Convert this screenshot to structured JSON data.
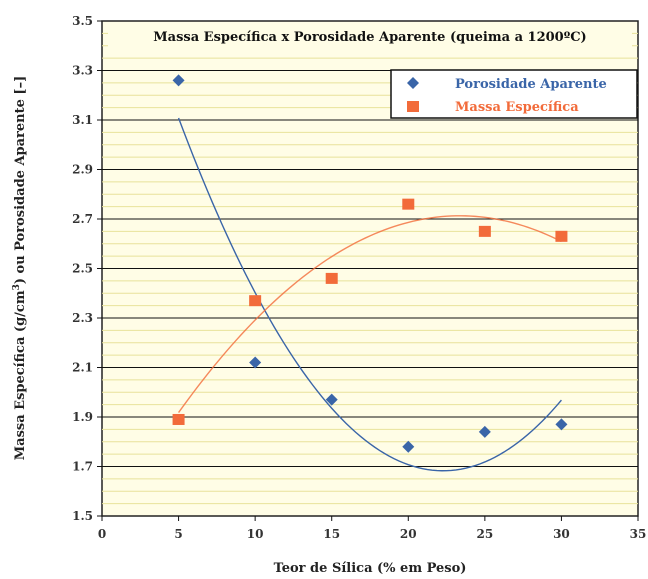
{
  "chart_data": {
    "type": "scatter",
    "title": "Massa Específica x Porosidade Aparente (queima a 1200ºC)",
    "xlabel": "Teor de Sílica (% em Peso)",
    "ylabel_main": "Massa Específica (g/cm",
    "ylabel_sup": "3",
    "ylabel_tail": ") ou Porosidade Aparente [–]",
    "xlim": [
      0,
      35
    ],
    "ylim": [
      1.5,
      3.5
    ],
    "x_ticks": [
      "0",
      "5",
      "10",
      "15",
      "20",
      "25",
      "30",
      "35"
    ],
    "y_ticks": [
      "1.5",
      "1.7",
      "1.9",
      "2.1",
      "2.3",
      "2.5",
      "2.7",
      "2.9",
      "3.1",
      "3.3",
      "3.5"
    ],
    "grid": true,
    "legend_position": "top-right",
    "series": [
      {
        "name": "Porosidade Aparente",
        "marker": "diamond",
        "color": "#3A65A8",
        "x": [
          5,
          10,
          15,
          20,
          25,
          30
        ],
        "y": [
          3.26,
          2.12,
          1.97,
          1.78,
          1.84,
          1.87
        ],
        "trend": "quadratic",
        "trend_x_range": [
          5,
          30
        ]
      },
      {
        "name": "Massa Específica",
        "marker": "square",
        "color": "#F26B3A",
        "x": [
          5,
          10,
          15,
          20,
          25,
          30
        ],
        "y": [
          1.89,
          2.37,
          2.46,
          2.76,
          2.65,
          2.63
        ],
        "trend": "quadratic",
        "trend_x_range": [
          5,
          30
        ]
      }
    ]
  }
}
